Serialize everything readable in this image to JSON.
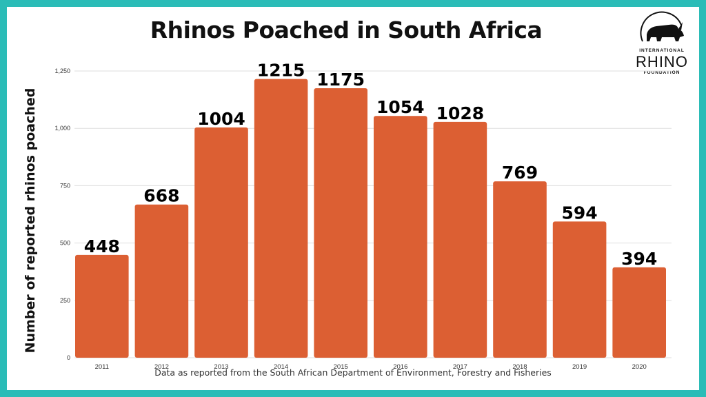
{
  "chart_data": {
    "type": "bar",
    "title": "Rhinos Poached in South Africa",
    "ylabel": "Number of reported rhinos poached",
    "xlabel": "",
    "categories": [
      "2011",
      "2012",
      "2013",
      "2014",
      "2015",
      "2016",
      "2017",
      "2018",
      "2019",
      "2020"
    ],
    "values": [
      448,
      668,
      1004,
      1215,
      1175,
      1054,
      1028,
      769,
      594,
      394
    ],
    "value_labels": [
      "448",
      "668",
      "1004",
      "1215",
      "1175",
      "1054",
      "1028",
      "769",
      "594",
      "394"
    ],
    "ylim": [
      0,
      1250
    ],
    "yticks": [
      0,
      250,
      500,
      750,
      1000,
      1250
    ],
    "ytick_labels": [
      "0",
      "250",
      "500",
      "750",
      "1,000",
      "1,250"
    ],
    "grid": true,
    "bar_color": "#dc5f33",
    "grid_color": "#dddddd"
  },
  "source_note": "Data as reported from the South African Department of Environment, Forestry and Fisheries",
  "logo": {
    "icon": "rhino-icon",
    "line1": "INTERNATIONAL",
    "line2": "RHINO",
    "line3": "FOUNDATION"
  },
  "colors": {
    "frame": "#2bbcb7",
    "background": "#ffffff"
  }
}
